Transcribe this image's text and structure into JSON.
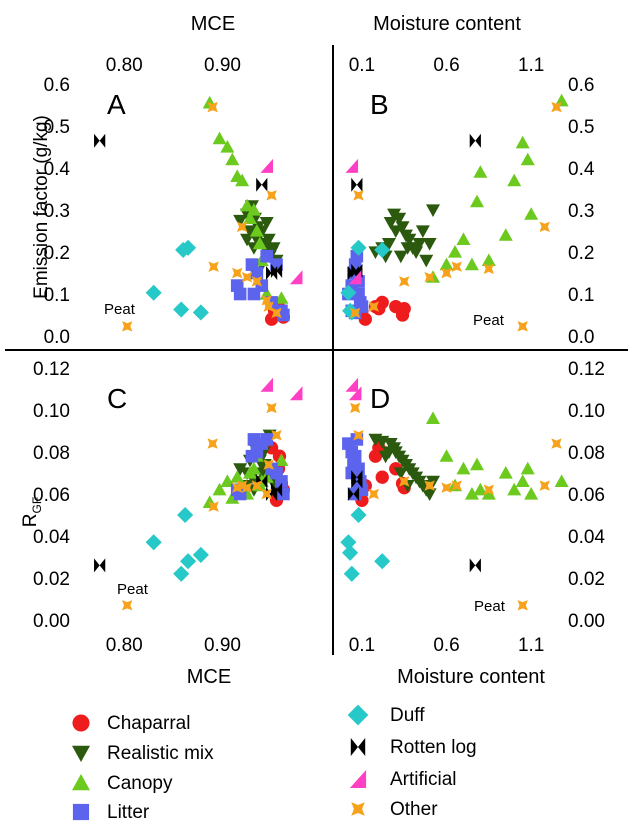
{
  "figure": {
    "panel_labels": [
      "A",
      "B",
      "C",
      "D"
    ],
    "top_axis_labels": [
      "MCE",
      "Moisture content"
    ],
    "bottom_axis_labels": [
      "MCE",
      "Moisture content"
    ],
    "left_axis_labels": [
      "Emission factor (g/kg)",
      "R",
      "GF"
    ],
    "peat_label": "Peat"
  },
  "legend": {
    "items": [
      {
        "name": "Chaparral",
        "marker": "circle",
        "color": "#ee1c1c"
      },
      {
        "name": "Realistic mix",
        "marker": "triangle-down",
        "color": "#2b5a0f"
      },
      {
        "name": "Canopy",
        "marker": "triangle-up",
        "color": "#6cc91e"
      },
      {
        "name": "Litter",
        "marker": "square",
        "color": "#5c64ee"
      },
      {
        "name": "Duff",
        "marker": "diamond",
        "color": "#27c8c8"
      },
      {
        "name": "Rotten log",
        "marker": "bowtie",
        "color": "#000000"
      },
      {
        "name": "Artificial",
        "marker": "flag",
        "color": "#ff3fc4"
      },
      {
        "name": "Other",
        "marker": "star4",
        "color": "#f7a21b"
      }
    ]
  },
  "chart_data": [
    {
      "panel": "A",
      "type": "scatter",
      "xlabel": "MCE",
      "ylabel": "Emission factor (g/kg)",
      "xlim": [
        0.755,
        0.985
      ],
      "ylim": [
        0,
        0.6
      ],
      "xticks": [
        "0.80",
        "0.90"
      ],
      "yticks": [
        "0.0",
        "0.1",
        "0.2",
        "0.3",
        "0.4",
        "0.5",
        "0.6"
      ],
      "series": [
        {
          "name": "Chaparral",
          "x": [
            0.955,
            0.96,
            0.95,
            0.957,
            0.953,
            0.962
          ],
          "y": [
            0.065,
            0.05,
            0.04,
            0.07,
            0.06,
            0.045
          ]
        },
        {
          "name": "Realistic mix",
          "x": [
            0.918,
            0.925,
            0.93,
            0.933,
            0.936,
            0.938,
            0.94,
            0.942,
            0.945,
            0.947,
            0.95,
            0.952,
            0.955,
            0.928,
            0.935,
            0.943,
            0.948,
            0.932,
            0.94,
            0.925
          ],
          "y": [
            0.275,
            0.29,
            0.31,
            0.28,
            0.26,
            0.24,
            0.25,
            0.22,
            0.27,
            0.23,
            0.2,
            0.21,
            0.18,
            0.25,
            0.23,
            0.21,
            0.19,
            0.21,
            0.17,
            0.23
          ]
        },
        {
          "name": "Canopy",
          "x": [
            0.887,
            0.897,
            0.905,
            0.91,
            0.915,
            0.92,
            0.925,
            0.928,
            0.932,
            0.935,
            0.938,
            0.94,
            0.945,
            0.96
          ],
          "y": [
            0.555,
            0.47,
            0.45,
            0.42,
            0.38,
            0.37,
            0.31,
            0.28,
            0.3,
            0.25,
            0.22,
            0.18,
            0.1,
            0.09
          ]
        },
        {
          "name": "Litter",
          "x": [
            0.915,
            0.918,
            0.93,
            0.935,
            0.94,
            0.945,
            0.95,
            0.955,
            0.96,
            0.962,
            0.932
          ],
          "y": [
            0.12,
            0.1,
            0.17,
            0.15,
            0.12,
            0.19,
            0.08,
            0.17,
            0.06,
            0.05,
            0.1
          ]
        },
        {
          "name": "Duff",
          "x": [
            0.83,
            0.858,
            0.865,
            0.878,
            0.86
          ],
          "y": [
            0.103,
            0.063,
            0.21,
            0.056,
            0.205
          ]
        },
        {
          "name": "Rotten log",
          "x": [
            0.775,
            0.94,
            0.95,
            0.955
          ],
          "y": [
            0.465,
            0.36,
            0.15,
            0.155
          ]
        },
        {
          "name": "Artificial",
          "x": [
            0.945,
            0.975
          ],
          "y": [
            0.405,
            0.14
          ]
        },
        {
          "name": "Other",
          "x": [
            0.803,
            0.89,
            0.891,
            0.92,
            0.915,
            0.925,
            0.935,
            0.945,
            0.947,
            0.95,
            0.955
          ],
          "y": [
            0.023,
            0.545,
            0.165,
            0.26,
            0.15,
            0.14,
            0.13,
            0.085,
            0.07,
            0.335,
            0.055
          ]
        }
      ]
    },
    {
      "panel": "B",
      "type": "scatter",
      "xlabel": "Moisture content",
      "ylabel": "Emission factor (g/kg)",
      "xlim": [
        0,
        1.3
      ],
      "ylim": [
        0,
        0.6
      ],
      "xticks": [
        "0.1",
        "0.6",
        "1.1"
      ],
      "yticks": [
        "0.0",
        "0.1",
        "0.2",
        "0.3",
        "0.4",
        "0.5",
        "0.6"
      ],
      "series": [
        {
          "name": "Chaparral",
          "x": [
            0.1,
            0.12,
            0.18,
            0.22,
            0.3,
            0.34,
            0.35,
            0.2
          ],
          "y": [
            0.06,
            0.04,
            0.07,
            0.08,
            0.07,
            0.05,
            0.065,
            0.065
          ]
        },
        {
          "name": "Realistic mix",
          "x": [
            0.18,
            0.22,
            0.27,
            0.29,
            0.3,
            0.32,
            0.34,
            0.36,
            0.38,
            0.4,
            0.42,
            0.44,
            0.46,
            0.48,
            0.5,
            0.52,
            0.26,
            0.24,
            0.33,
            0.37
          ],
          "y": [
            0.2,
            0.21,
            0.27,
            0.29,
            0.25,
            0.28,
            0.26,
            0.24,
            0.23,
            0.21,
            0.2,
            0.22,
            0.25,
            0.18,
            0.22,
            0.3,
            0.22,
            0.19,
            0.19,
            0.21
          ]
        },
        {
          "name": "Canopy",
          "x": [
            0.52,
            0.6,
            0.7,
            0.75,
            0.78,
            0.8,
            0.85,
            0.95,
            1.0,
            1.05,
            1.08,
            1.1,
            1.28,
            0.65
          ],
          "y": [
            0.14,
            0.17,
            0.23,
            0.17,
            0.32,
            0.39,
            0.18,
            0.24,
            0.37,
            0.46,
            0.42,
            0.29,
            0.56,
            0.2
          ]
        },
        {
          "name": "Litter",
          "x": [
            0.02,
            0.04,
            0.05,
            0.06,
            0.07,
            0.08,
            0.09,
            0.1,
            0.04,
            0.06,
            0.08
          ],
          "y": [
            0.1,
            0.12,
            0.15,
            0.17,
            0.19,
            0.1,
            0.08,
            0.07,
            0.06,
            0.055,
            0.13
          ]
        },
        {
          "name": "Duff",
          "x": [
            0.02,
            0.03,
            0.04,
            0.08,
            0.22
          ],
          "y": [
            0.103,
            0.06,
            0.056,
            0.21,
            0.205
          ]
        },
        {
          "name": "Rotten log",
          "x": [
            0.05,
            0.07,
            0.07,
            0.77
          ],
          "y": [
            0.15,
            0.36,
            0.155,
            0.465
          ]
        },
        {
          "name": "Artificial",
          "x": [
            0.04,
            0.06
          ],
          "y": [
            0.405,
            0.14
          ]
        },
        {
          "name": "Other",
          "x": [
            0.06,
            0.08,
            0.17,
            0.35,
            0.5,
            0.6,
            0.66,
            0.85,
            1.05,
            1.18,
            1.25
          ],
          "y": [
            0.055,
            0.335,
            0.07,
            0.13,
            0.14,
            0.15,
            0.165,
            0.16,
            0.023,
            0.26,
            0.545
          ]
        }
      ]
    },
    {
      "panel": "C",
      "type": "scatter",
      "xlabel": "MCE",
      "ylabel": "RGF",
      "xlim": [
        0.755,
        0.985
      ],
      "ylim": [
        0,
        0.12
      ],
      "xticks": [
        "0.80",
        "0.90"
      ],
      "yticks": [
        "0.00",
        "0.02",
        "0.04",
        "0.06",
        "0.08",
        "0.10",
        "0.12"
      ],
      "series": [
        {
          "name": "Chaparral",
          "x": [
            0.955,
            0.96,
            0.95,
            0.957,
            0.953,
            0.962,
            0.958
          ],
          "y": [
            0.057,
            0.065,
            0.082,
            0.072,
            0.068,
            0.062,
            0.078
          ]
        },
        {
          "name": "Realistic mix",
          "x": [
            0.918,
            0.925,
            0.93,
            0.933,
            0.936,
            0.938,
            0.94,
            0.942,
            0.945,
            0.947,
            0.95,
            0.952,
            0.955,
            0.928,
            0.935,
            0.943,
            0.948,
            0.932,
            0.94,
            0.925
          ],
          "y": [
            0.072,
            0.07,
            0.068,
            0.082,
            0.078,
            0.076,
            0.074,
            0.08,
            0.086,
            0.072,
            0.068,
            0.065,
            0.063,
            0.076,
            0.066,
            0.074,
            0.088,
            0.062,
            0.07,
            0.064
          ]
        },
        {
          "name": "Canopy",
          "x": [
            0.887,
            0.897,
            0.905,
            0.91,
            0.915,
            0.92,
            0.925,
            0.928,
            0.932,
            0.935,
            0.938,
            0.94,
            0.945,
            0.96
          ],
          "y": [
            0.056,
            0.062,
            0.066,
            0.058,
            0.068,
            0.064,
            0.06,
            0.07,
            0.072,
            0.078,
            0.064,
            0.066,
            0.068,
            0.076
          ]
        },
        {
          "name": "Litter",
          "x": [
            0.915,
            0.918,
            0.93,
            0.935,
            0.94,
            0.945,
            0.95,
            0.955,
            0.96,
            0.962,
            0.932
          ],
          "y": [
            0.062,
            0.06,
            0.078,
            0.08,
            0.084,
            0.086,
            0.072,
            0.07,
            0.066,
            0.06,
            0.086
          ]
        },
        {
          "name": "Duff",
          "x": [
            0.83,
            0.858,
            0.865,
            0.878,
            0.862
          ],
          "y": [
            0.037,
            0.022,
            0.028,
            0.031,
            0.05
          ]
        },
        {
          "name": "Rotten log",
          "x": [
            0.775,
            0.94,
            0.95,
            0.955
          ],
          "y": [
            0.026,
            0.066,
            0.06,
            0.062
          ]
        },
        {
          "name": "Artificial",
          "x": [
            0.945,
            0.975
          ],
          "y": [
            0.112,
            0.108
          ]
        },
        {
          "name": "Other",
          "x": [
            0.803,
            0.89,
            0.891,
            0.92,
            0.915,
            0.925,
            0.935,
            0.945,
            0.947,
            0.95,
            0.955
          ],
          "y": [
            0.007,
            0.084,
            0.054,
            0.064,
            0.063,
            0.063,
            0.064,
            0.06,
            0.074,
            0.101,
            0.088
          ]
        }
      ]
    },
    {
      "panel": "D",
      "type": "scatter",
      "xlabel": "Moisture content",
      "ylabel": "RGF",
      "xlim": [
        0,
        1.3
      ],
      "ylim": [
        0,
        0.12
      ],
      "xticks": [
        "0.1",
        "0.6",
        "1.1"
      ],
      "yticks": [
        "0.00",
        "0.02",
        "0.04",
        "0.06",
        "0.08",
        "0.10",
        "0.12"
      ],
      "series": [
        {
          "name": "Chaparral",
          "x": [
            0.1,
            0.12,
            0.18,
            0.22,
            0.3,
            0.34,
            0.35,
            0.2
          ],
          "y": [
            0.057,
            0.064,
            0.078,
            0.068,
            0.072,
            0.065,
            0.063,
            0.082
          ]
        },
        {
          "name": "Realistic mix",
          "x": [
            0.18,
            0.22,
            0.27,
            0.29,
            0.3,
            0.32,
            0.34,
            0.36,
            0.38,
            0.4,
            0.42,
            0.44,
            0.46,
            0.48,
            0.5,
            0.52,
            0.26,
            0.24,
            0.33,
            0.37
          ],
          "y": [
            0.086,
            0.085,
            0.084,
            0.082,
            0.08,
            0.078,
            0.076,
            0.074,
            0.072,
            0.07,
            0.068,
            0.066,
            0.064,
            0.062,
            0.06,
            0.066,
            0.08,
            0.078,
            0.07,
            0.064
          ]
        },
        {
          "name": "Canopy",
          "x": [
            0.52,
            0.6,
            0.7,
            0.75,
            0.78,
            0.8,
            0.85,
            0.95,
            1.0,
            1.05,
            1.08,
            1.1,
            1.28,
            0.65
          ],
          "y": [
            0.096,
            0.078,
            0.072,
            0.06,
            0.074,
            0.062,
            0.06,
            0.07,
            0.062,
            0.066,
            0.072,
            0.06,
            0.066,
            0.064
          ]
        },
        {
          "name": "Litter",
          "x": [
            0.02,
            0.04,
            0.05,
            0.06,
            0.07,
            0.08,
            0.09,
            0.1,
            0.04,
            0.06,
            0.08
          ],
          "y": [
            0.084,
            0.08,
            0.074,
            0.078,
            0.086,
            0.072,
            0.066,
            0.062,
            0.07,
            0.06,
            0.064
          ]
        },
        {
          "name": "Duff",
          "x": [
            0.02,
            0.03,
            0.04,
            0.08,
            0.22
          ],
          "y": [
            0.037,
            0.032,
            0.022,
            0.05,
            0.028
          ]
        },
        {
          "name": "Rotten log",
          "x": [
            0.05,
            0.07,
            0.07,
            0.77
          ],
          "y": [
            0.06,
            0.068,
            0.066,
            0.026
          ]
        },
        {
          "name": "Artificial",
          "x": [
            0.04,
            0.06
          ],
          "y": [
            0.112,
            0.108
          ]
        },
        {
          "name": "Other",
          "x": [
            0.06,
            0.08,
            0.17,
            0.35,
            0.5,
            0.6,
            0.66,
            0.85,
            1.05,
            1.18,
            1.25
          ],
          "y": [
            0.101,
            0.088,
            0.06,
            0.066,
            0.064,
            0.063,
            0.064,
            0.062,
            0.007,
            0.064,
            0.084
          ]
        }
      ]
    }
  ]
}
